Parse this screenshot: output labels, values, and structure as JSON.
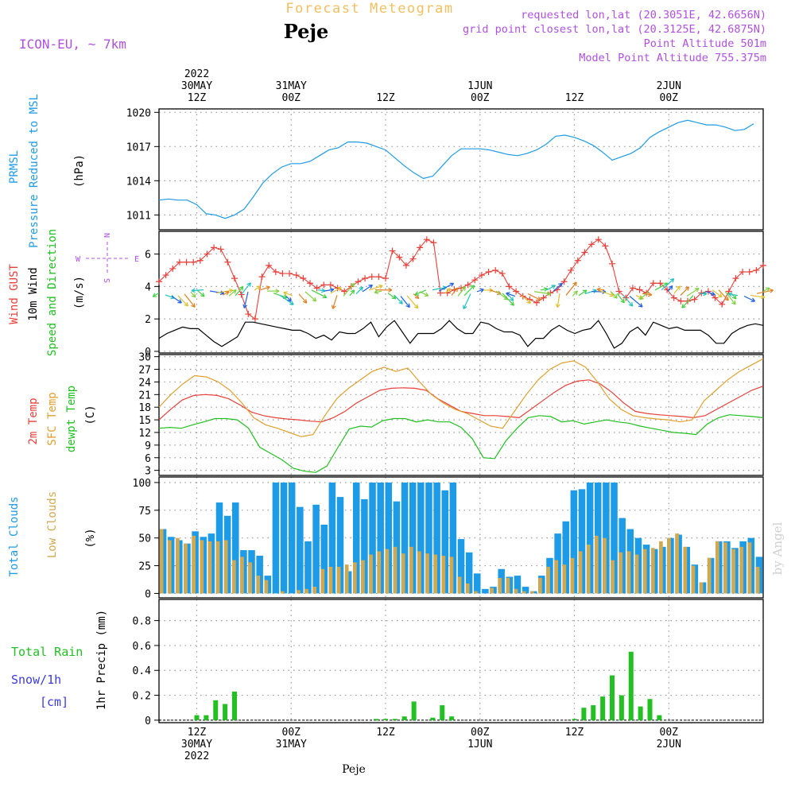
{
  "header": {
    "title": "Forecast Meteogram",
    "place": "Peje",
    "model": "ICON-EU, ~ 7km",
    "requested": "requested lon,lat (20.3051E, 42.6656N)",
    "gridpoint": "grid point closest lon,lat (20.3125E, 42.6875N)",
    "altitude": "Point Altitude 501m",
    "model_altitude": "Model Point Altitude 755.375m",
    "credit": "by Angel",
    "footer": "Peje"
  },
  "colors": {
    "pressure": "#1e9be6",
    "gust": "#e8403a",
    "wind": "#000000",
    "temp": "#e8403a",
    "sfc": "#e0a030",
    "dewpt": "#20c020",
    "total_clouds": "#1e9be6",
    "low_clouds": "#d0a850",
    "rain": "#22c022",
    "snow": "#3a3ae0",
    "purple": "#b050e0"
  },
  "time_axis": {
    "x_range": [
      0,
      64
    ],
    "top_ticks": [
      {
        "x": 4,
        "l1": "2022",
        "l2": "30MAY",
        "l3": "12Z"
      },
      {
        "x": 14,
        "l1": "",
        "l2": "31MAY",
        "l3": "00Z"
      },
      {
        "x": 24,
        "l1": "",
        "l2": "",
        "l3": "12Z"
      },
      {
        "x": 34,
        "l1": "",
        "l2": "1JUN",
        "l3": "00Z"
      },
      {
        "x": 44,
        "l1": "",
        "l2": "",
        "l3": "12Z"
      },
      {
        "x": 54,
        "l1": "",
        "l2": "2JUN",
        "l3": "00Z"
      }
    ],
    "bottom_ticks": [
      {
        "x": 4,
        "l1": "12Z",
        "l2": "30MAY",
        "l3": "2022"
      },
      {
        "x": 14,
        "l1": "00Z",
        "l2": "31MAY",
        "l3": ""
      },
      {
        "x": 24,
        "l1": "12Z",
        "l2": "",
        "l3": ""
      },
      {
        "x": 34,
        "l1": "00Z",
        "l2": "1JUN",
        "l3": ""
      },
      {
        "x": 44,
        "l1": "12Z",
        "l2": "",
        "l3": ""
      },
      {
        "x": 54,
        "l1": "00Z",
        "l2": "2JUN",
        "l3": ""
      }
    ]
  },
  "panels": {
    "pressure": {
      "label1": "PRMSL",
      "label2": "Pressure Reduced to MSL",
      "unit": "(hPa)"
    },
    "wind": {
      "label1": "Wind GUST",
      "label2": "10m Wind",
      "label3": "Speed and Direction",
      "unit": "(m/s)",
      "compass_n": "N",
      "compass_s": "S",
      "compass_w": "W",
      "compass_e": "E"
    },
    "temp": {
      "label1": "2m Temp",
      "label2": "SFC Temp",
      "label3": "dewpt Temp",
      "unit": "(C)"
    },
    "clouds": {
      "label1": "Total Clouds",
      "label2": "Low Clouds",
      "unit": "(%)"
    },
    "precip": {
      "label1": "Total Rain",
      "label2": "Snow/1h",
      "label3": "[cm]",
      "unit": "1hr Precip (mm)"
    }
  },
  "chart_data": [
    {
      "id": "pressure",
      "type": "line",
      "ylabel": "(hPa)",
      "ylim": [
        1009.7,
        1020.3
      ],
      "yticks": [
        1011,
        1014,
        1017,
        1020
      ],
      "series": [
        {
          "name": "PRMSL",
          "x": [
            0,
            1,
            2,
            3,
            4,
            5,
            6,
            7,
            8,
            9,
            10,
            11,
            12,
            13,
            14,
            15,
            16,
            17,
            18,
            19,
            20,
            21,
            22,
            23,
            24,
            25,
            26,
            27,
            28,
            29,
            30,
            31,
            32,
            33,
            34,
            35,
            36,
            37,
            38,
            39,
            40,
            41,
            42,
            43,
            44,
            45,
            46,
            47,
            48,
            49,
            50,
            51,
            52,
            53,
            54,
            55,
            56,
            57,
            58,
            59,
            60,
            61,
            62,
            63
          ],
          "values": [
            1012.3,
            1012.4,
            1012.3,
            1012.3,
            1011.9,
            1011.1,
            1011.0,
            1010.7,
            1011.0,
            1011.5,
            1012.6,
            1013.8,
            1014.6,
            1015.2,
            1015.5,
            1015.5,
            1015.7,
            1016.2,
            1016.7,
            1016.9,
            1017.4,
            1017.4,
            1017.3,
            1017.0,
            1016.7,
            1016.0,
            1015.3,
            1014.7,
            1014.2,
            1014.4,
            1015.3,
            1016.2,
            1016.8,
            1016.8,
            1016.8,
            1016.7,
            1016.5,
            1016.3,
            1016.2,
            1016.4,
            1016.7,
            1017.2,
            1017.9,
            1018.0,
            1017.8,
            1017.5,
            1017.1,
            1016.5,
            1015.8,
            1016.1,
            1016.4,
            1016.9,
            1017.8,
            1018.3,
            1018.7,
            1019.1,
            1019.3,
            1019.1,
            1018.9,
            1018.9,
            1018.7,
            1018.4,
            1018.5,
            1019.0
          ]
        }
      ]
    },
    {
      "id": "wind",
      "type": "line",
      "ylabel": "(m/s)",
      "ylim": [
        -0.1,
        7.4
      ],
      "yticks": [
        0,
        2,
        4,
        6
      ],
      "series": [
        {
          "name": "Wind GUST",
          "values": [
            4.3,
            4.7,
            5.1,
            5.5,
            5.5,
            5.5,
            5.6,
            6.0,
            6.4,
            6.3,
            5.5,
            4.5,
            3.5,
            2.3,
            2.0,
            4.6,
            5.3,
            4.9,
            4.8,
            4.8,
            4.7,
            4.5,
            4.2,
            3.9,
            4.1,
            4.1,
            3.9,
            3.7,
            4.0,
            4.3,
            4.5,
            4.6,
            4.6,
            4.5,
            6.2,
            5.8,
            5.3,
            5.7,
            6.4,
            6.9,
            6.7,
            3.6,
            3.6,
            3.8,
            3.9,
            4.1,
            4.4,
            4.7,
            4.9,
            5.0,
            4.8,
            4.0,
            3.7,
            3.4,
            3.2,
            3.0,
            3.3,
            3.6,
            3.8,
            4.3,
            5.0,
            5.6,
            6.1,
            6.6,
            6.9,
            6.5,
            5.4,
            3.7,
            3.3,
            3.9,
            3.8,
            3.6,
            4.2,
            4.2,
            3.8,
            3.3,
            3.1,
            3.1,
            3.2,
            3.6,
            3.7,
            3.3,
            2.9,
            3.7,
            4.5,
            4.9,
            4.9,
            5.0,
            5.3
          ]
        },
        {
          "name": "10m Wind",
          "values": [
            0.8,
            1.1,
            1.3,
            1.5,
            1.4,
            1.4,
            1.0,
            0.6,
            0.3,
            0.6,
            0.9,
            1.8,
            1.8,
            1.7,
            1.6,
            1.5,
            1.4,
            1.3,
            1.3,
            1.1,
            0.8,
            1.0,
            0.7,
            1.2,
            1.1,
            1.1,
            1.4,
            1.8,
            0.9,
            1.5,
            1.9,
            1.2,
            0.5,
            1.1,
            1.1,
            1.1,
            1.4,
            1.9,
            1.4,
            1.1,
            1.1,
            1.8,
            1.7,
            1.4,
            1.2,
            1.2,
            1.0,
            0.3,
            0.8,
            0.8,
            1.3,
            1.6,
            1.3,
            1.1,
            1.3,
            1.4,
            1.9,
            1.1,
            0.2,
            0.5,
            1.2,
            1.5,
            1.0,
            1.8,
            1.6,
            1.4,
            1.5,
            1.3,
            1.3,
            1.3,
            1.0,
            0.5,
            0.5,
            1.1,
            1.4,
            1.6,
            1.7,
            1.6
          ]
        }
      ]
    },
    {
      "id": "temp",
      "type": "line",
      "ylabel": "(C)",
      "ylim": [
        1.8,
        30.5
      ],
      "yticks": [
        3,
        6,
        9,
        12,
        15,
        18,
        21,
        24,
        27,
        30
      ],
      "series": [
        {
          "name": "2m Temp",
          "values": [
            15.0,
            17.5,
            19.7,
            20.8,
            21.0,
            20.8,
            20.0,
            18.5,
            16.8,
            16.0,
            15.5,
            15.2,
            15.0,
            14.7,
            14.5,
            15.5,
            17.0,
            19.0,
            20.5,
            22.0,
            22.5,
            22.6,
            22.5,
            22.0,
            20.0,
            18.5,
            17.0,
            16.5,
            16.0,
            16.0,
            15.8,
            15.5,
            17.5,
            19.5,
            21.5,
            23.2,
            24.2,
            24.5,
            23.5,
            21.5,
            19.0,
            17.0,
            16.5,
            16.2,
            16.0,
            15.8,
            15.5,
            16.0,
            17.5,
            19.0,
            20.5,
            22.0,
            23.0
          ]
        },
        {
          "name": "SFC Temp",
          "values": [
            18.0,
            21.0,
            23.5,
            25.5,
            25.2,
            24.0,
            22.0,
            19.0,
            15.5,
            13.8,
            13.0,
            12.0,
            11.0,
            11.5,
            16.0,
            20.0,
            22.5,
            24.5,
            26.5,
            27.5,
            26.5,
            27.3,
            24.0,
            21.0,
            19.0,
            17.5,
            16.5,
            15.0,
            13.5,
            13.0,
            17.0,
            21.0,
            24.5,
            27.0,
            28.5,
            29.0,
            27.5,
            24.0,
            20.0,
            17.5,
            16.0,
            15.5,
            15.2,
            15.0,
            14.5,
            15.0,
            19.5,
            22.0,
            24.5,
            26.5,
            28.0,
            29.5
          ]
        },
        {
          "name": "dewpt Temp",
          "values": [
            13.0,
            13.2,
            13.0,
            13.8,
            14.5,
            15.3,
            15.3,
            15.0,
            13.0,
            8.5,
            7.0,
            5.5,
            3.5,
            2.8,
            2.5,
            4.0,
            8.5,
            12.8,
            13.5,
            13.3,
            14.8,
            15.3,
            15.3,
            14.5,
            15.0,
            14.5,
            14.5,
            13.2,
            10.5,
            6.0,
            5.8,
            10.0,
            13.0,
            15.5,
            16.0,
            15.8,
            14.5,
            14.8,
            14.0,
            14.5,
            15.0,
            14.5,
            14.2,
            13.5,
            13.0,
            12.5,
            12.0,
            11.8,
            11.5,
            14.0,
            15.5,
            16.2,
            16.0,
            15.8,
            15.5
          ]
        }
      ]
    },
    {
      "id": "clouds",
      "type": "bar",
      "ylabel": "(%)",
      "ylim": [
        -4,
        105
      ],
      "yticks": [
        0,
        25,
        50,
        75,
        100
      ],
      "series": [
        {
          "name": "Total Clouds",
          "values": [
            58,
            51,
            48,
            45,
            56,
            51,
            54,
            82,
            70,
            82,
            39,
            39,
            34,
            16,
            100,
            100,
            100,
            78,
            47,
            80,
            62,
            100,
            87,
            20,
            100,
            85,
            100,
            100,
            100,
            83,
            100,
            100,
            100,
            100,
            100,
            93,
            100,
            49,
            37,
            18,
            4,
            6,
            22,
            15,
            16,
            6,
            2,
            16,
            32,
            54,
            65,
            93,
            94,
            100,
            100,
            100,
            100,
            68,
            58,
            50,
            44,
            40,
            42,
            50,
            53,
            42,
            26,
            10,
            32,
            47,
            47,
            41,
            47,
            50,
            33
          ]
        },
        {
          "name": "Low Clouds",
          "values": [
            58,
            48,
            50,
            45,
            52,
            48,
            47,
            47,
            48,
            30,
            33,
            28,
            16,
            12,
            0,
            2,
            0,
            3,
            4,
            6,
            22,
            24,
            24,
            26,
            28,
            30,
            35,
            38,
            40,
            42,
            36,
            42,
            38,
            36,
            35,
            34,
            33,
            15,
            9,
            2,
            0,
            5,
            14,
            14,
            4,
            2,
            2,
            14,
            24,
            30,
            26,
            32,
            38,
            44,
            52,
            50,
            30,
            37,
            38,
            35,
            40,
            41,
            47,
            50,
            54,
            42,
            25,
            10,
            32,
            47,
            46,
            40,
            42,
            46,
            24
          ]
        }
      ]
    },
    {
      "id": "precip",
      "type": "bar",
      "ylabel": "1hr Precip (mm)",
      "ylim": [
        -0.02,
        0.97
      ],
      "yticks": [
        0,
        0.2,
        0.4,
        0.6,
        0.8
      ],
      "series": [
        {
          "name": "Total Rain",
          "x": [
            4,
            5,
            6,
            7,
            8,
            23,
            24,
            25,
            26,
            27,
            28,
            29,
            30,
            31,
            32,
            33,
            34,
            35,
            36,
            37,
            38,
            39,
            40,
            41,
            42,
            43,
            44,
            45,
            46,
            47,
            48,
            49,
            50,
            51,
            52,
            53,
            54,
            55,
            56,
            57,
            58,
            59,
            60,
            61,
            62,
            63
          ],
          "values": [
            0.04,
            0.04,
            0.16,
            0.13,
            0.23,
            0.01,
            0.01,
            0.01,
            0.03,
            0.15,
            0,
            0.02,
            0.12,
            0.03,
            0,
            0,
            0,
            0,
            0,
            0,
            0,
            0,
            0,
            0,
            0,
            0,
            0.01,
            0.1,
            0.12,
            0.19,
            0.36,
            0.2,
            0.55,
            0.11,
            0.17,
            0.04,
            0,
            0,
            0,
            0,
            0,
            0,
            0,
            0,
            0,
            0
          ]
        },
        {
          "name": "Snow/1h",
          "values": [
            0
          ]
        }
      ]
    }
  ]
}
